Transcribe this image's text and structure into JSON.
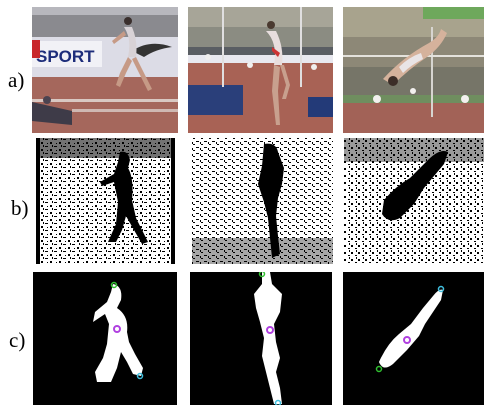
{
  "figure": {
    "rows": [
      {
        "label": "a)",
        "panels": [
          {
            "kind": "photo",
            "banner_text": "SPORT"
          },
          {
            "kind": "photo",
            "banner_text": ""
          },
          {
            "kind": "photo",
            "banner_text": ""
          }
        ]
      },
      {
        "label": "b)",
        "panels": [
          {
            "kind": "edge-map"
          },
          {
            "kind": "edge-map"
          },
          {
            "kind": "edge-map"
          }
        ]
      },
      {
        "label": "c)",
        "panels": [
          {
            "kind": "segmentation"
          },
          {
            "kind": "segmentation"
          },
          {
            "kind": "segmentation"
          }
        ]
      }
    ],
    "marker_colors": {
      "centroid": "#b040e0",
      "head": "#30c030",
      "foot": "#40c0e0"
    }
  }
}
